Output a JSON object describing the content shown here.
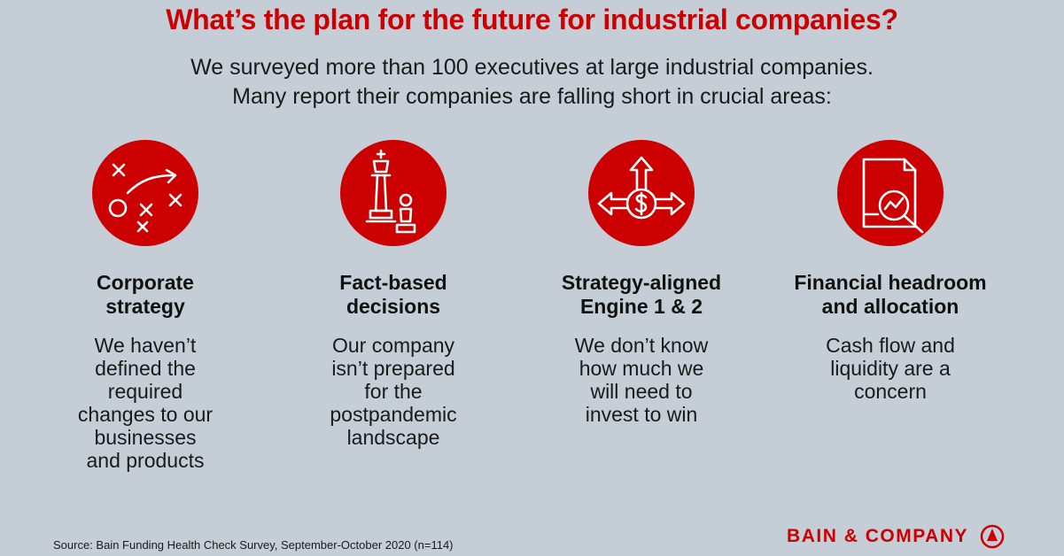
{
  "header": {
    "title": "What’s the plan for the future for industrial companies?",
    "subtitle_line1": "We surveyed more than 100 executives at large industrial companies.",
    "subtitle_line2": "Many report their companies are falling short in crucial areas:"
  },
  "columns": [
    {
      "icon": "strategy-play-icon",
      "heading": [
        "Corporate",
        "strategy"
      ],
      "body": [
        "We haven’t",
        "defined the",
        "required",
        "changes to our",
        "businesses",
        "and products"
      ]
    },
    {
      "icon": "chess-pieces-icon",
      "heading": [
        "Fact-based",
        "decisions"
      ],
      "body": [
        "Our company",
        "isn’t prepared",
        "for the",
        "postpandemic",
        "landscape"
      ]
    },
    {
      "icon": "dollar-arrows-icon",
      "heading": [
        "Strategy-aligned",
        "Engine 1 & 2"
      ],
      "body": [
        "We don’t know",
        "how much we",
        "will need to",
        "invest to win"
      ]
    },
    {
      "icon": "document-magnifier-icon",
      "heading": [
        "Financial headroom",
        "and allocation"
      ],
      "body": [
        "Cash flow and",
        "liquidity are a",
        "concern"
      ]
    }
  ],
  "footer": {
    "source": "Source: Bain Funding Health Check Survey, September-October 2020 (n=114)",
    "logo_text": "BAIN & COMPANY"
  },
  "colors": {
    "background": "#c5ced6",
    "accent": "#cc0000",
    "text": "#1a1a1a"
  }
}
